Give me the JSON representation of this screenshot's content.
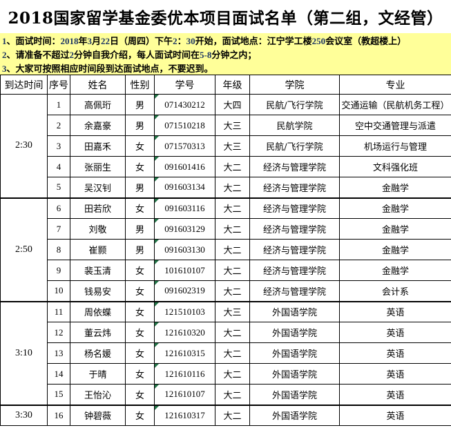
{
  "colors": {
    "page_bg": "#FFFFFF",
    "notice_bg": "#FFFF99",
    "number_navy": "#1F3864",
    "marker_green": "#217346",
    "border_black": "#000000"
  },
  "title": "2018国家留学基金委优本项目面试名单（第二组，文经管）",
  "notice": {
    "lines": [
      "1、面试时间：2018年3月22日（周四）下午2：30开始，面试地点：江宁学工楼250会议室（教超楼上）",
      "2、请准备不超过2分钟自我介绍，每人面试时间在5-8分钟之内；",
      "3、大家可按照相应时间段到达面试地点，不要迟到。"
    ]
  },
  "table": {
    "headers": [
      "到达时间",
      "序号",
      "姓名",
      "性别",
      "学号",
      "年级",
      "学院",
      "专业"
    ],
    "time_groups": [
      {
        "time": "2:30",
        "span": 5
      },
      {
        "time": "2:50",
        "span": 5
      },
      {
        "time": "3:10",
        "span": 5
      },
      {
        "time": "3:30",
        "span": 1
      }
    ],
    "rows": [
      {
        "no": "1",
        "name": "高佩珩",
        "gender": "男",
        "student_id": "071430212",
        "grade": "大四",
        "college": "民航/飞行学院",
        "major": "交通运输（民航机务工程）"
      },
      {
        "no": "2",
        "name": "余嘉豪",
        "gender": "男",
        "student_id": "071510218",
        "grade": "大三",
        "college": "民航学院",
        "major": "空中交通管理与派遣"
      },
      {
        "no": "3",
        "name": "田嘉禾",
        "gender": "女",
        "student_id": "071570313",
        "grade": "大三",
        "college": "民航/飞行学院",
        "major": "机场运行与管理"
      },
      {
        "no": "4",
        "name": "张丽生",
        "gender": "女",
        "student_id": "091601416",
        "grade": "大二",
        "college": "经济与管理学院",
        "major": "文科强化班"
      },
      {
        "no": "5",
        "name": "吴汉钊",
        "gender": "男",
        "student_id": "091603134",
        "grade": "大二",
        "college": "经济与管理学院",
        "major": "金融学"
      },
      {
        "no": "6",
        "name": "田若欣",
        "gender": "女",
        "student_id": "091603116",
        "grade": "大二",
        "college": "经济与管理学院",
        "major": "金融学"
      },
      {
        "no": "7",
        "name": "刘敬",
        "gender": "男",
        "student_id": "091603129",
        "grade": "大二",
        "college": "经济与管理学院",
        "major": "金融学"
      },
      {
        "no": "8",
        "name": "崔颢",
        "gender": "男",
        "student_id": "091603130",
        "grade": "大二",
        "college": "经济与管理学院",
        "major": "金融学"
      },
      {
        "no": "9",
        "name": "裴玉清",
        "gender": "女",
        "student_id": "101610107",
        "grade": "大二",
        "college": "经济与管理学院",
        "major": "金融学"
      },
      {
        "no": "10",
        "name": "钱易安",
        "gender": "女",
        "student_id": "091602319",
        "grade": "大二",
        "college": "经济与管理学院",
        "major": "会计系"
      },
      {
        "no": "11",
        "name": "周依蝶",
        "gender": "女",
        "student_id": "121510103",
        "grade": "大三",
        "college": "外国语学院",
        "major": "英语"
      },
      {
        "no": "12",
        "name": "董云炜",
        "gender": "女",
        "student_id": "121610320",
        "grade": "大二",
        "college": "外国语学院",
        "major": "英语"
      },
      {
        "no": "13",
        "name": "杨名媛",
        "gender": "女",
        "student_id": "121610315",
        "grade": "大二",
        "college": "外国语学院",
        "major": "英语"
      },
      {
        "no": "14",
        "name": "于晴",
        "gender": "女",
        "student_id": "121610116",
        "grade": "大二",
        "college": "外国语学院",
        "major": "英语"
      },
      {
        "no": "15",
        "name": "王怡沁",
        "gender": "女",
        "student_id": "121610107",
        "grade": "大二",
        "college": "外国语学院",
        "major": "英语"
      },
      {
        "no": "16",
        "name": "钟碧薇",
        "gender": "女",
        "student_id": "121610317",
        "grade": "大二",
        "college": "外国语学院",
        "major": "英语"
      }
    ]
  }
}
